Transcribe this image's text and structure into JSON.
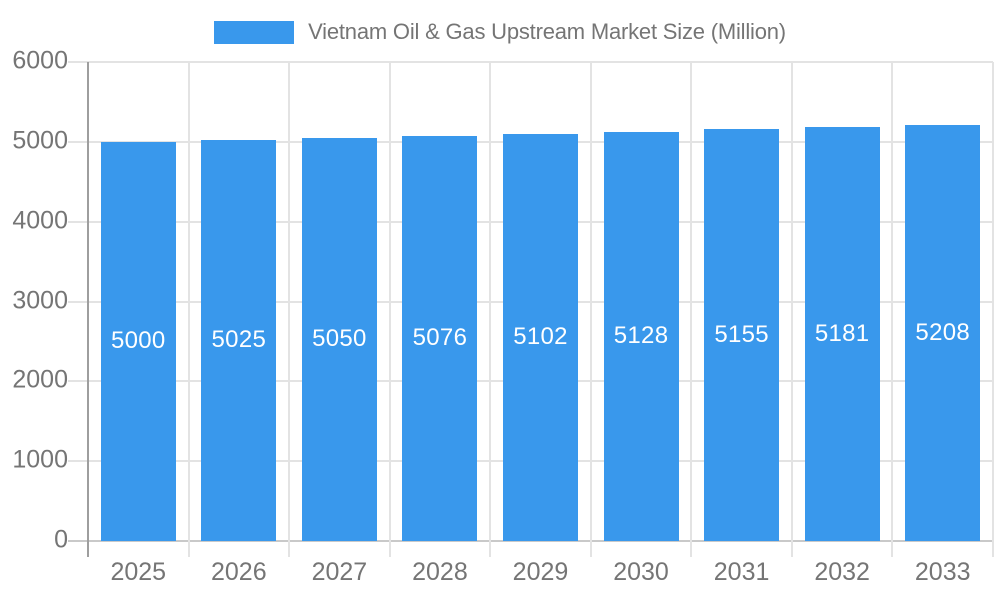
{
  "chart_data": {
    "type": "bar",
    "title": "Vietnam Oil & Gas Upstream Market Size (Million)",
    "legend_position": "top",
    "categories": [
      "2025",
      "2026",
      "2027",
      "2028",
      "2029",
      "2030",
      "2031",
      "2032",
      "2033"
    ],
    "values": [
      5000,
      5025,
      5050,
      5076,
      5102,
      5128,
      5155,
      5181,
      5208
    ],
    "bar_value_labels": [
      "5000",
      "5025",
      "5050",
      "5076",
      "5102",
      "5128",
      "5155",
      "5181",
      "5208"
    ],
    "xlabel": "",
    "ylabel": "",
    "ylim": [
      0,
      6000
    ],
    "yticks": [
      0,
      1000,
      2000,
      3000,
      4000,
      5000,
      6000
    ],
    "grid": true,
    "colors": {
      "bar": "#3998EC",
      "bar_label": "#FFFFFF",
      "axis_text": "#757575",
      "title_text": "#757575",
      "grid_line": "#E3E3E3",
      "axis_line": "#9E9E9E",
      "baseline": "#C9C9C9",
      "background": "#FFFFFF"
    }
  }
}
